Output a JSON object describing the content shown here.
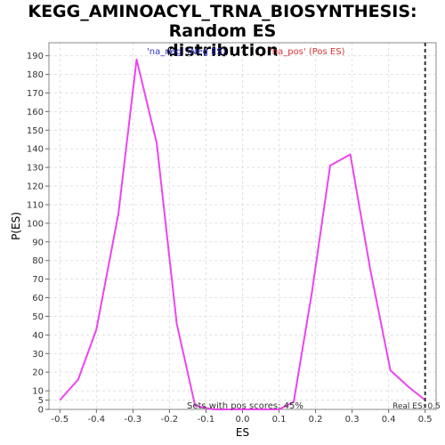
{
  "chart_data": {
    "type": "line",
    "title_line1": "KEGG_AMINOACYL_TRNA_BIOSYNTHESIS: Random ES",
    "title_line2": "distribution",
    "xlabel": "ES",
    "ylabel": "P(ES)",
    "xlim": [
      -0.53,
      0.53
    ],
    "ylim": [
      0,
      197
    ],
    "x_ticks": [
      -0.5,
      -0.4,
      -0.3,
      -0.2,
      -0.1,
      0.0,
      0.1,
      0.2,
      0.3,
      0.4,
      0.5
    ],
    "x_tick_labels": [
      "-0.5",
      "-0.4",
      "-0.3",
      "-0.2",
      "-0.1",
      "0.0",
      "0.1",
      "0.2",
      "0.3",
      "0.4",
      "0.5"
    ],
    "y_ticks": [
      0,
      5,
      10,
      20,
      30,
      40,
      50,
      60,
      70,
      80,
      90,
      100,
      110,
      120,
      130,
      140,
      150,
      160,
      170,
      180,
      190
    ],
    "y_tick_labels": [
      "0",
      "5",
      "10",
      "20",
      "30",
      "40",
      "50",
      "60",
      "70",
      "80",
      "90",
      "100",
      "110",
      "120",
      "130",
      "140",
      "150",
      "160",
      "170",
      "180",
      "190"
    ],
    "grid": true,
    "series": [
      {
        "color": "#ee44ee",
        "x": [
          -0.5,
          -0.45,
          -0.4,
          -0.34,
          -0.29,
          -0.235,
          -0.18,
          -0.13,
          -0.08,
          -0.03,
          0.02,
          0.06,
          0.1,
          0.14,
          0.19,
          0.24,
          0.295,
          0.35,
          0.405,
          0.455,
          0.5
        ],
        "y": [
          5,
          16,
          43,
          105,
          188,
          143,
          46,
          2,
          0,
          0,
          0,
          0,
          0,
          4,
          63,
          131,
          137,
          75,
          21,
          12,
          5
        ]
      }
    ],
    "real_es": 0.5,
    "real_es_color": "#333333",
    "annotations": {
      "neg_label": "'na_neg' (Neg ES)",
      "neg_color": "#3333cc",
      "pos_label": "'na_pos' (Pos ES)",
      "pos_color": "#dd3333",
      "pos_scores_text": "Sets with pos scores: 45%",
      "real_es_text": "Real ES: 0.5"
    }
  }
}
